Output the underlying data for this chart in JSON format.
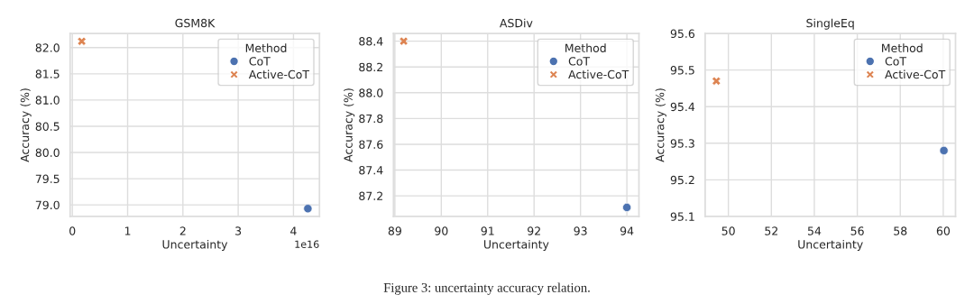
{
  "chart_data": [
    {
      "type": "scatter",
      "title": "GSM8K",
      "xlabel": "Uncertainty",
      "ylabel": "Accuracy (%)",
      "legend_title": "Method",
      "legend": "top right",
      "grid": true,
      "series": [
        {
          "name": "CoT",
          "color": "#4c72b0",
          "marker": "circle",
          "x": [
            4.26
          ],
          "values": [
            78.93
          ]
        },
        {
          "name": "Active-CoT",
          "color": "#dd8452",
          "marker": "cross",
          "x": [
            0.17
          ],
          "values": [
            82.12
          ]
        }
      ],
      "xlim": [
        -0.04,
        4.47
      ],
      "ylim": [
        78.78,
        82.27
      ],
      "xticks": [
        0,
        1,
        2,
        3,
        4
      ],
      "yticks": [
        {
          "value": 79,
          "label": "79.0"
        },
        79.5,
        {
          "value": 80,
          "label": "80.0"
        },
        80.5,
        {
          "value": 81,
          "label": "81.0"
        },
        81.5,
        {
          "value": 82,
          "label": "82.0"
        }
      ],
      "annotations": [
        "1e16"
      ]
    },
    {
      "type": "scatter",
      "title": "ASDiv",
      "xlabel": "Uncertainty",
      "ylabel": "Accuracy (%)",
      "legend_title": "Method",
      "legend": "top right",
      "grid": true,
      "series": [
        {
          "name": "CoT",
          "color": "#4c72b0",
          "marker": "circle",
          "x": [
            94.0
          ],
          "values": [
            87.11
          ]
        },
        {
          "name": "Active-CoT",
          "color": "#dd8452",
          "marker": "cross",
          "x": [
            89.19
          ],
          "values": [
            88.4
          ]
        }
      ],
      "xlim": [
        88.97,
        94.26
      ],
      "ylim": [
        87.04,
        88.46
      ],
      "xticks": [
        89,
        90,
        91,
        92,
        93,
        94
      ],
      "yticks": [
        87.2,
        87.4,
        87.6,
        87.8,
        {
          "value": 88,
          "label": "88.0"
        },
        88.2,
        88.4
      ]
    },
    {
      "type": "scatter",
      "title": "SingleEq",
      "xlabel": "Uncertainty",
      "ylabel": "Accuracy (%)",
      "legend_title": "Method",
      "legend": "top right",
      "grid": true,
      "series": [
        {
          "name": "CoT",
          "color": "#4c72b0",
          "marker": "circle",
          "x": [
            60.03
          ],
          "values": [
            95.28
          ]
        },
        {
          "name": "Active-CoT",
          "color": "#dd8452",
          "marker": "cross",
          "x": [
            49.44
          ],
          "values": [
            95.47
          ]
        }
      ],
      "xlim": [
        48.92,
        60.57
      ],
      "ylim": [
        95.1,
        95.6
      ],
      "xticks": [
        50,
        52,
        54,
        56,
        58,
        60
      ],
      "yticks": [
        95.1,
        95.2,
        95.3,
        95.4,
        95.5,
        95.6
      ],
      "annotations": [
        "Figure 3: uncertainty accuracy relation."
      ]
    }
  ]
}
